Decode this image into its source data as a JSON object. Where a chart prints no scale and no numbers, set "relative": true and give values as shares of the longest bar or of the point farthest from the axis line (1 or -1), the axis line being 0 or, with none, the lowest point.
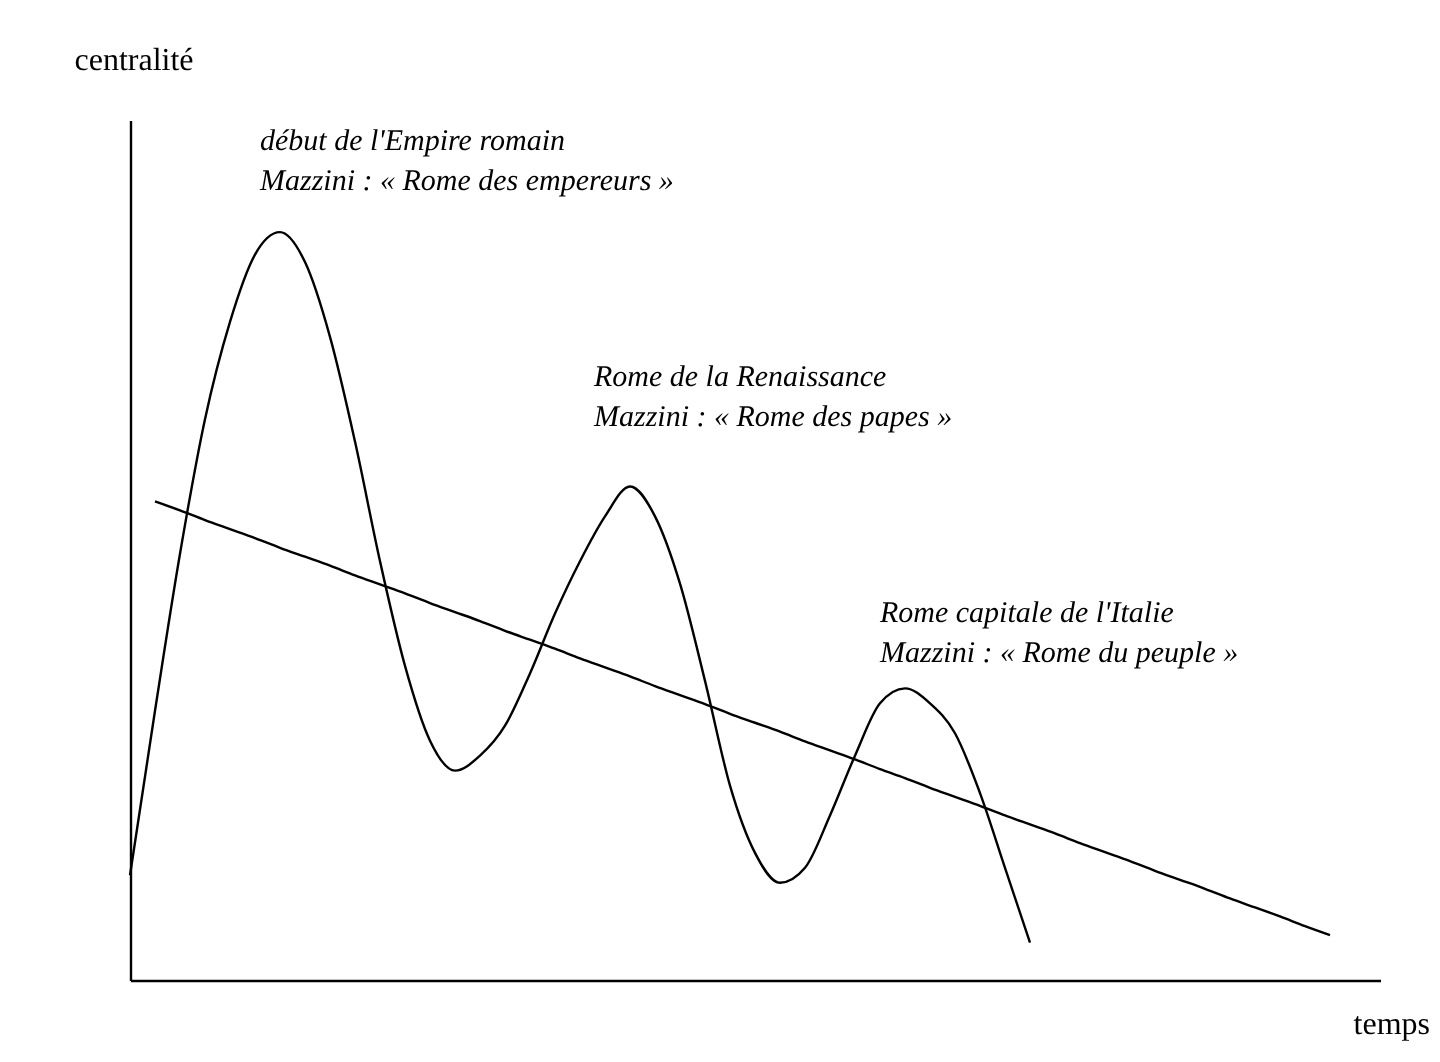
{
  "chart_data": {
    "type": "line",
    "relative": true,
    "xlabel": "temps",
    "ylabel": "centralité",
    "line_style": "solid",
    "categories": [
      null,
      null,
      null,
      null,
      null,
      null,
      null,
      null,
      null,
      null,
      null,
      null,
      null,
      null,
      null,
      null,
      null,
      null,
      null,
      null,
      null,
      null,
      null,
      null,
      null,
      null,
      null,
      null,
      null,
      null,
      null,
      null,
      null,
      null,
      null,
      null,
      null,
      null,
      null,
      null,
      null,
      null,
      null,
      null,
      null,
      null,
      null,
      null,
      null,
      null,
      null
    ],
    "series": [
      {
        "color": "#000000",
        "values": [
          0.14,
          0.36,
          0.57,
          0.75,
          0.88,
          0.97,
          1,
          0.96,
          0.86,
          0.72,
          0.56,
          0.42,
          0.32,
          0.28,
          0.3,
          0.34,
          0.41,
          0.49,
          0.56,
          0.62,
          0.66,
          0.62,
          0.53,
          0.4,
          0.26,
          0.17,
          0.13,
          0.15,
          0.22,
          0.3,
          0.37,
          0.39,
          0.37,
          0.33,
          0.25,
          0.15,
          0.05,
          null,
          null,
          null,
          null,
          null,
          null,
          null,
          null,
          null,
          null,
          null,
          null,
          null,
          null
        ]
      },
      {
        "color": "#000000",
        "values": [
          null,
          0.64,
          0.628,
          0.615,
          0.603,
          0.591,
          0.578,
          0.566,
          0.554,
          0.541,
          0.529,
          0.517,
          0.504,
          0.492,
          0.48,
          0.467,
          0.455,
          0.443,
          0.43,
          0.418,
          0.406,
          0.393,
          0.381,
          0.369,
          0.356,
          0.344,
          0.332,
          0.319,
          0.307,
          0.295,
          0.282,
          0.27,
          0.257,
          0.245,
          0.233,
          0.22,
          0.208,
          0.196,
          0.183,
          0.171,
          0.159,
          0.146,
          0.134,
          0.122,
          0.109,
          0.097,
          0.085,
          0.072,
          0.06,
          null,
          null
        ]
      }
    ],
    "annotations": [
      "début de l'Empire romain\nMazzini : « Rome des empereurs »",
      "Rome de la Renaissance\nMazzini : « Rome des papes »",
      "Rome capitale de l'Italie\nMazzini : « Rome du peuple »"
    ]
  }
}
